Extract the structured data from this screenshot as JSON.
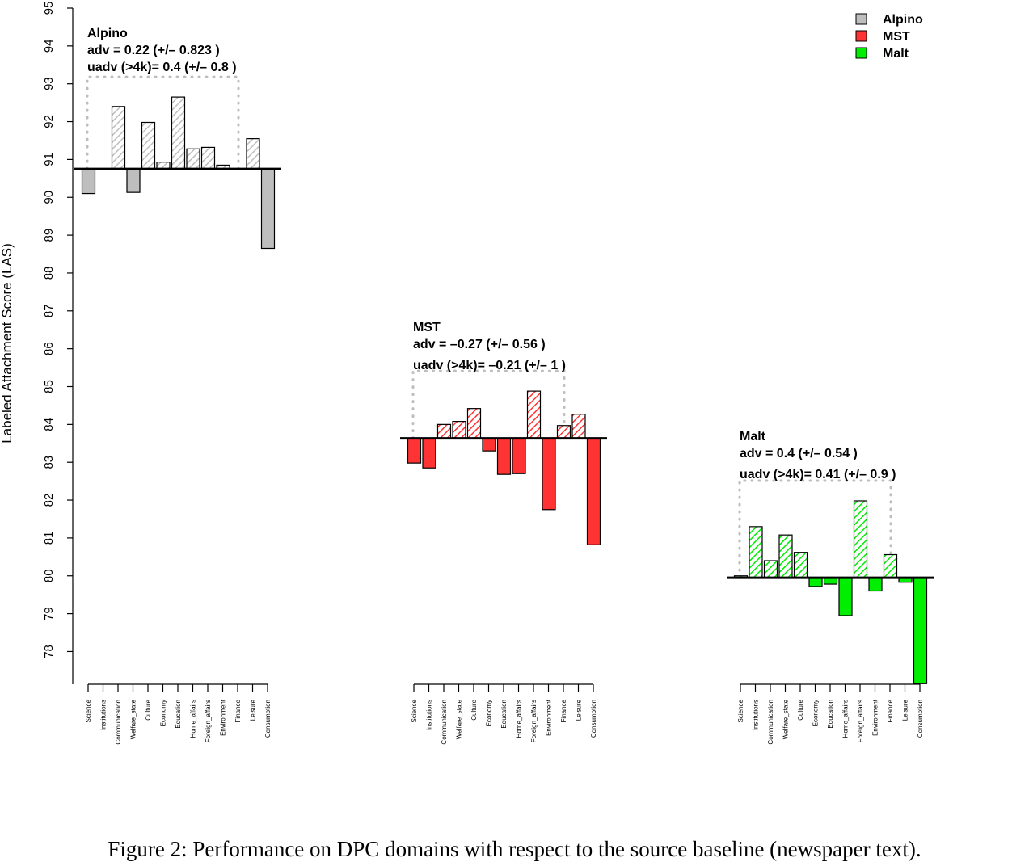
{
  "chart_data": {
    "type": "bar",
    "ylabel": "Labeled Attachment Score (LAS)",
    "ylim": [
      77.2,
      95
    ],
    "yticks": [
      78,
      79,
      80,
      81,
      82,
      83,
      84,
      85,
      86,
      87,
      88,
      89,
      90,
      91,
      92,
      93,
      94,
      95
    ],
    "categories": [
      "Science",
      "Institutions",
      "Communication",
      "Welfare_state",
      "Culture",
      "Economy",
      "Education",
      "Home_affairs",
      "Foreign_affairs",
      "Environment",
      "Finance",
      "Leisure",
      "Consumption"
    ],
    "grid": false,
    "legend": {
      "position": "top-right",
      "items": [
        "Alpino",
        "MST",
        "Malt"
      ]
    },
    "series": [
      {
        "name": "Alpino",
        "color": "#bebebe",
        "baseline": 90.75,
        "values": [
          90.1,
          90.75,
          92.4,
          90.13,
          91.98,
          90.93,
          92.65,
          91.28,
          91.32,
          90.85,
          90.75,
          91.55,
          88.65
        ],
        "annotation": [
          "Alpino",
          "adv = 0.22 (+/– 0.823 )",
          "uadv (>4k)= 0.4 (+/– 0.8 )"
        ]
      },
      {
        "name": "MST",
        "color": "#ff3333",
        "baseline": 83.63,
        "values": [
          82.98,
          82.85,
          84.0,
          84.08,
          84.42,
          83.3,
          82.68,
          82.7,
          84.88,
          81.75,
          83.97,
          84.27,
          80.82
        ],
        "annotation": [
          "MST",
          "adv = –0.27 (+/– 0.56 )",
          "uadv (>4k)= –0.21 (+/– 1 )"
        ]
      },
      {
        "name": "Malt",
        "color": "#00ee00",
        "baseline": 79.95,
        "values": [
          80.0,
          81.3,
          80.4,
          81.08,
          80.62,
          79.72,
          79.78,
          78.95,
          81.98,
          79.6,
          80.56,
          79.83,
          77.15
        ],
        "annotation": [
          "Malt",
          "adv = 0.4 (+/– 0.54 )",
          "uadv (>4k)= 0.41 (+/– 0.9 )"
        ]
      }
    ]
  },
  "caption": "Figure 2: Performance on DPC domains with respect to the source baseline (newspaper text)."
}
